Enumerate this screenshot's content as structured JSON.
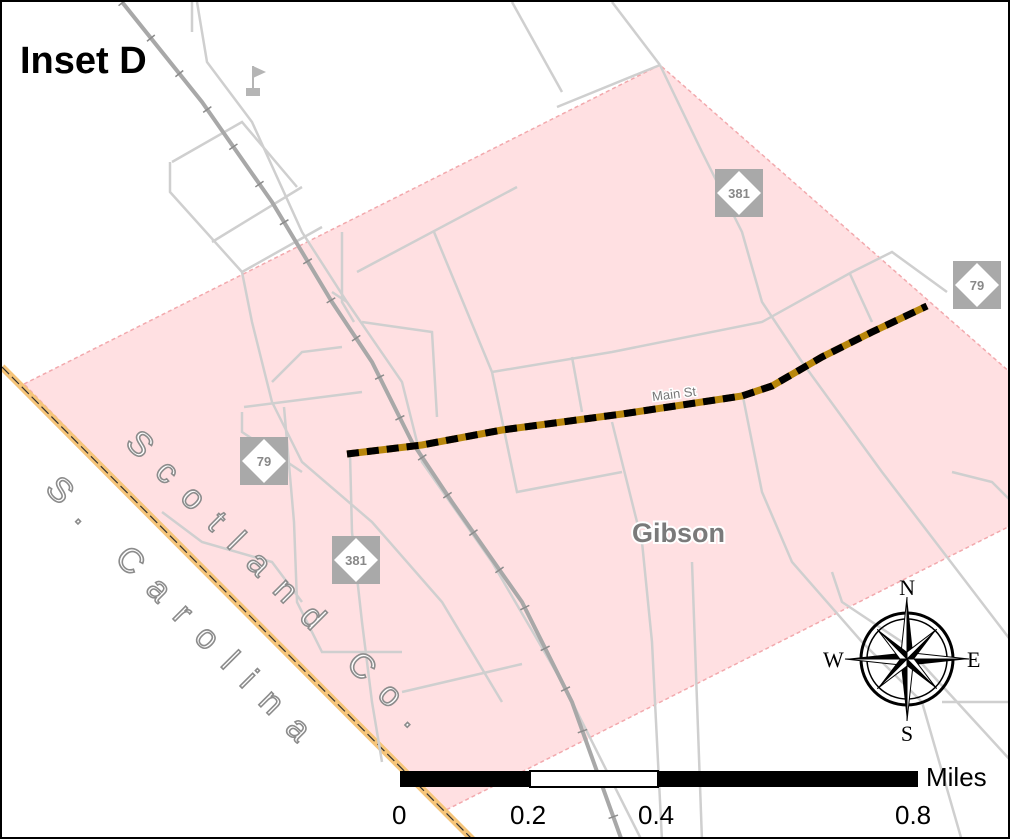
{
  "title": "Inset D",
  "town_label": "Gibson",
  "street_label": "Main St",
  "county_label": "Scotland Co.",
  "state_label": "S. Carolina",
  "shields": [
    {
      "id": "shield-381-north",
      "number": "381"
    },
    {
      "id": "shield-79-east",
      "number": "79"
    },
    {
      "id": "shield-79-west",
      "number": "79"
    },
    {
      "id": "shield-381-south",
      "number": "381"
    }
  ],
  "compass": {
    "n": "N",
    "s": "S",
    "e": "E",
    "w": "W"
  },
  "scale_bar": {
    "unit": "Miles",
    "ticks": [
      "0",
      "0.2",
      "0.4",
      "0.8"
    ]
  },
  "colors": {
    "town_fill": "#ffe0e2",
    "town_border": "#f2a9ad",
    "roads": "#cfcfcf",
    "railroad": "#a8a8a8",
    "highlight_route": "#b8860b",
    "state_line": "#f6c57a"
  }
}
